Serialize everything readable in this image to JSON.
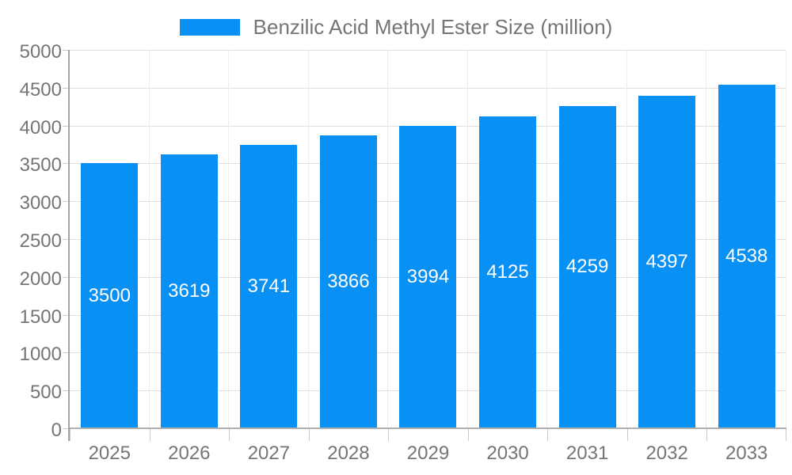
{
  "chart_data": {
    "type": "bar",
    "title": "Benzilic Acid Methyl Ester Size (million)",
    "categories": [
      "2025",
      "2026",
      "2027",
      "2028",
      "2029",
      "2030",
      "2031",
      "2032",
      "2033"
    ],
    "values": [
      3500,
      3619,
      3741,
      3866,
      3994,
      4125,
      4259,
      4397,
      4538
    ],
    "xlabel": "",
    "ylabel": "",
    "ylim": [
      0,
      5000
    ],
    "y_ticks": [
      0,
      500,
      1000,
      1500,
      2000,
      2500,
      3000,
      3500,
      4000,
      4500,
      5000
    ],
    "grid": true,
    "legend_position": "top",
    "colors": {
      "bar": "#0990F5",
      "bar_value_label": "#ffffff",
      "axis_text": "#757575",
      "grid_line": "#e0e0e0",
      "axis_line": "#a3a3a3"
    }
  }
}
